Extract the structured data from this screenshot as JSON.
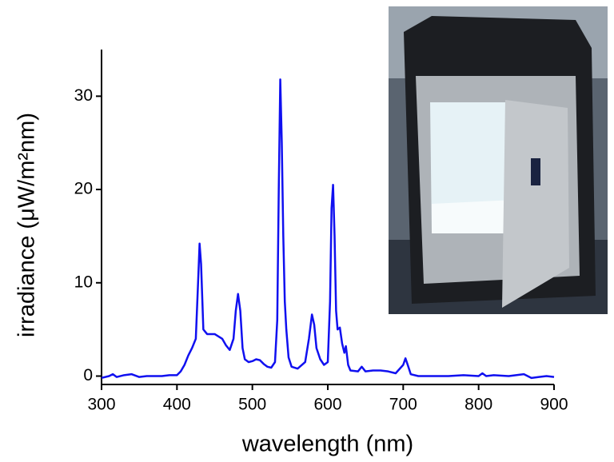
{
  "chart_data": {
    "type": "line",
    "x_label": "wavelength (nm)",
    "y_label": "irradiance (μW/m²nm)",
    "xlim": [
      300,
      900
    ],
    "xticks": [
      300,
      400,
      500,
      600,
      700,
      800,
      900
    ],
    "ylim": [
      -0.9,
      35
    ],
    "yticks": [
      0,
      10,
      20,
      30
    ],
    "series": [
      {
        "color": "#1010f0",
        "x": [
          300,
          310,
          315,
          320,
          330,
          340,
          350,
          360,
          370,
          380,
          390,
          400,
          405,
          410,
          415,
          420,
          425,
          428,
          430,
          432,
          435,
          440,
          450,
          460,
          465,
          470,
          475,
          478,
          481,
          484,
          487,
          490,
          495,
          500,
          505,
          510,
          515,
          520,
          525,
          530,
          533,
          535,
          537,
          539,
          541,
          543,
          545,
          548,
          552,
          560,
          570,
          575,
          579,
          582,
          585,
          590,
          595,
          600,
          603,
          605,
          607,
          609,
          611,
          613,
          616,
          619,
          622,
          624,
          627,
          630,
          640,
          645,
          650,
          660,
          670,
          680,
          690,
          700,
          703,
          706,
          710,
          720,
          740,
          760,
          780,
          800,
          805,
          810,
          820,
          840,
          860,
          870,
          880,
          890,
          900
        ],
        "values": [
          -0.2,
          0,
          0.2,
          -0.1,
          0.1,
          0.2,
          -0.1,
          0,
          0,
          0,
          0.1,
          0.1,
          0.5,
          1.2,
          2.2,
          3.0,
          4.0,
          10,
          14.2,
          12,
          5,
          4.5,
          4.5,
          4.0,
          3.3,
          2.8,
          4,
          7,
          8.8,
          7,
          3,
          1.8,
          1.5,
          1.6,
          1.8,
          1.7,
          1.3,
          1.0,
          0.9,
          1.5,
          6,
          20,
          31.8,
          25,
          15,
          8,
          5,
          2,
          1,
          0.8,
          1.5,
          4,
          6.6,
          5.5,
          3,
          1.8,
          1.2,
          1.5,
          8,
          18,
          20.5,
          15,
          7,
          5,
          5.2,
          3.5,
          2.5,
          3.2,
          1.2,
          0.6,
          0.5,
          1.0,
          0.5,
          0.6,
          0.6,
          0.5,
          0.3,
          1.2,
          1.9,
          1.2,
          0.2,
          0,
          0,
          0,
          0.1,
          0,
          0.3,
          0,
          0.1,
          0,
          0.2,
          -0.2,
          -0.1,
          0,
          -0.1
        ]
      }
    ]
  }
}
